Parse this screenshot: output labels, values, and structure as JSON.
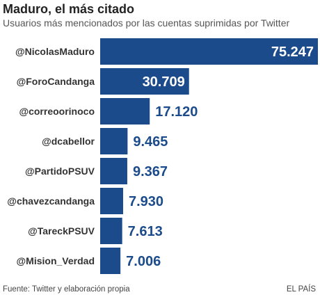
{
  "chart_data": {
    "type": "bar",
    "orientation": "horizontal",
    "title": "Maduro, el más citado",
    "subtitle": "Usuarios más mencionados por las cuentas suprimidas por Twitter",
    "categories": [
      "@NicolasMaduro",
      "@ForoCandanga",
      "@correoorinoco",
      "@dcabellor",
      "@PartidoPSUV",
      "@chavezcandanga",
      "@TareckPSUV",
      "@Mision_Verdad"
    ],
    "values": [
      75247,
      30709,
      17120,
      9465,
      9367,
      7930,
      7613,
      7006
    ],
    "value_labels": [
      "75.247",
      "30.709",
      "17.120",
      "9.465",
      "9.367",
      "7.930",
      "7.613",
      "7.006"
    ],
    "xlim": [
      0,
      75247
    ],
    "grid": false,
    "legend": "none",
    "source": "Fuente: Twitter y elaboración propia",
    "credit": "EL PAÍS",
    "colors": {
      "bar": "#1c4b8c",
      "label_inside": "#ffffff",
      "label_outside": "#1c4b8c"
    }
  }
}
